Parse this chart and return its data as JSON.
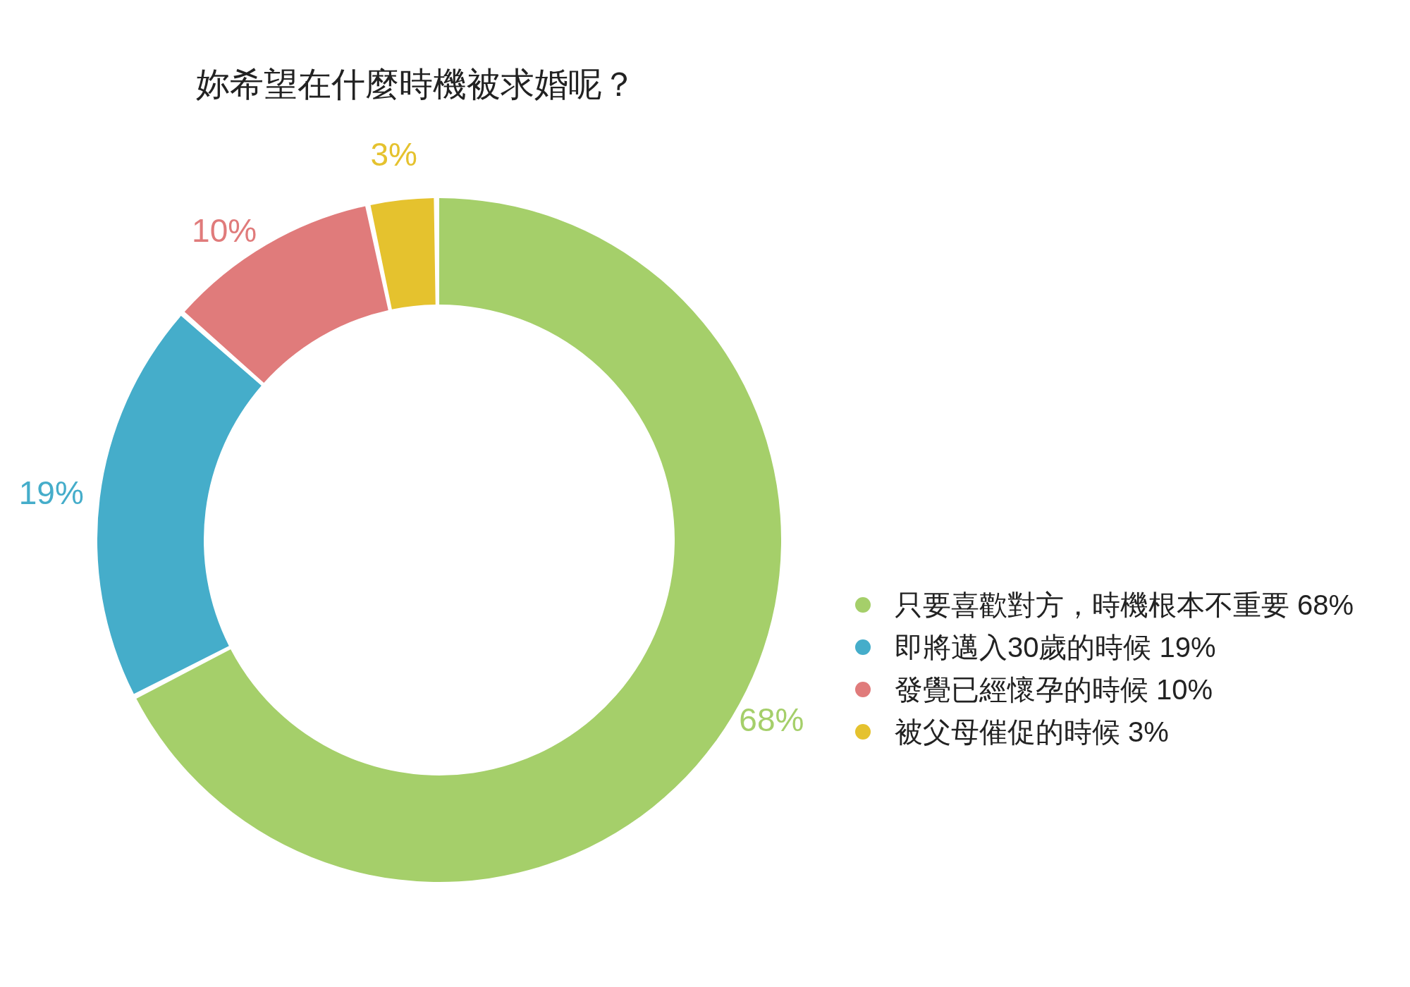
{
  "chart_data": {
    "type": "donut",
    "title": "妳希望在什麼時機被求婚呢？",
    "categories": [
      "只要喜歡對方，時機根本不重要",
      "即將邁入30歲的時候",
      "發覺已經懷孕的時候",
      "被父母催促的時候"
    ],
    "values": [
      68,
      19,
      10,
      3
    ],
    "value_labels": [
      "68%",
      "19%",
      "10%",
      "3%"
    ],
    "colors": [
      "#a5cf6a",
      "#45adca",
      "#e07b7b",
      "#e5c22e"
    ],
    "legend": "right"
  }
}
